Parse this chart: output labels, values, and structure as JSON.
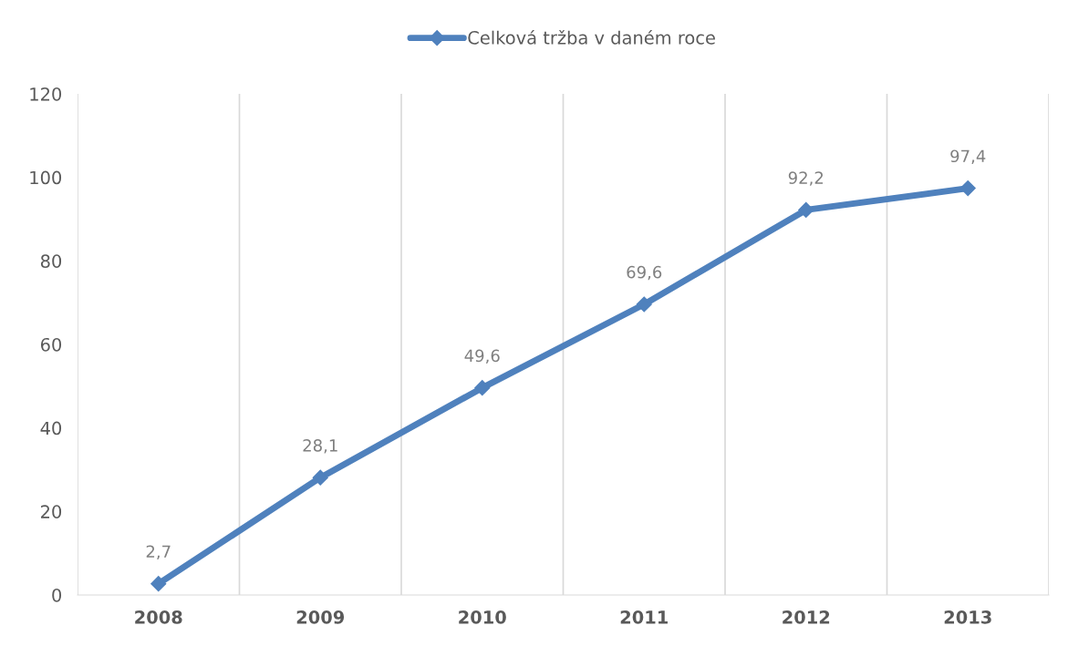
{
  "chart_data": {
    "type": "line",
    "categories": [
      "2008",
      "2009",
      "2010",
      "2011",
      "2012",
      "2013"
    ],
    "series": [
      {
        "name": "Celková tržba v daném roce",
        "color": "#4f81bd",
        "values": [
          2.7,
          28.1,
          49.6,
          69.6,
          92.2,
          97.4
        ],
        "value_labels": [
          "2,7",
          "28,1",
          "49,6",
          "69,6",
          "92,2",
          "97,4"
        ]
      }
    ],
    "ylim": [
      0,
      120
    ],
    "yticks": [
      0,
      20,
      40,
      60,
      80,
      100,
      120
    ],
    "grid": "x",
    "legend": "top",
    "marker": "diamond",
    "line_style": "solid"
  }
}
